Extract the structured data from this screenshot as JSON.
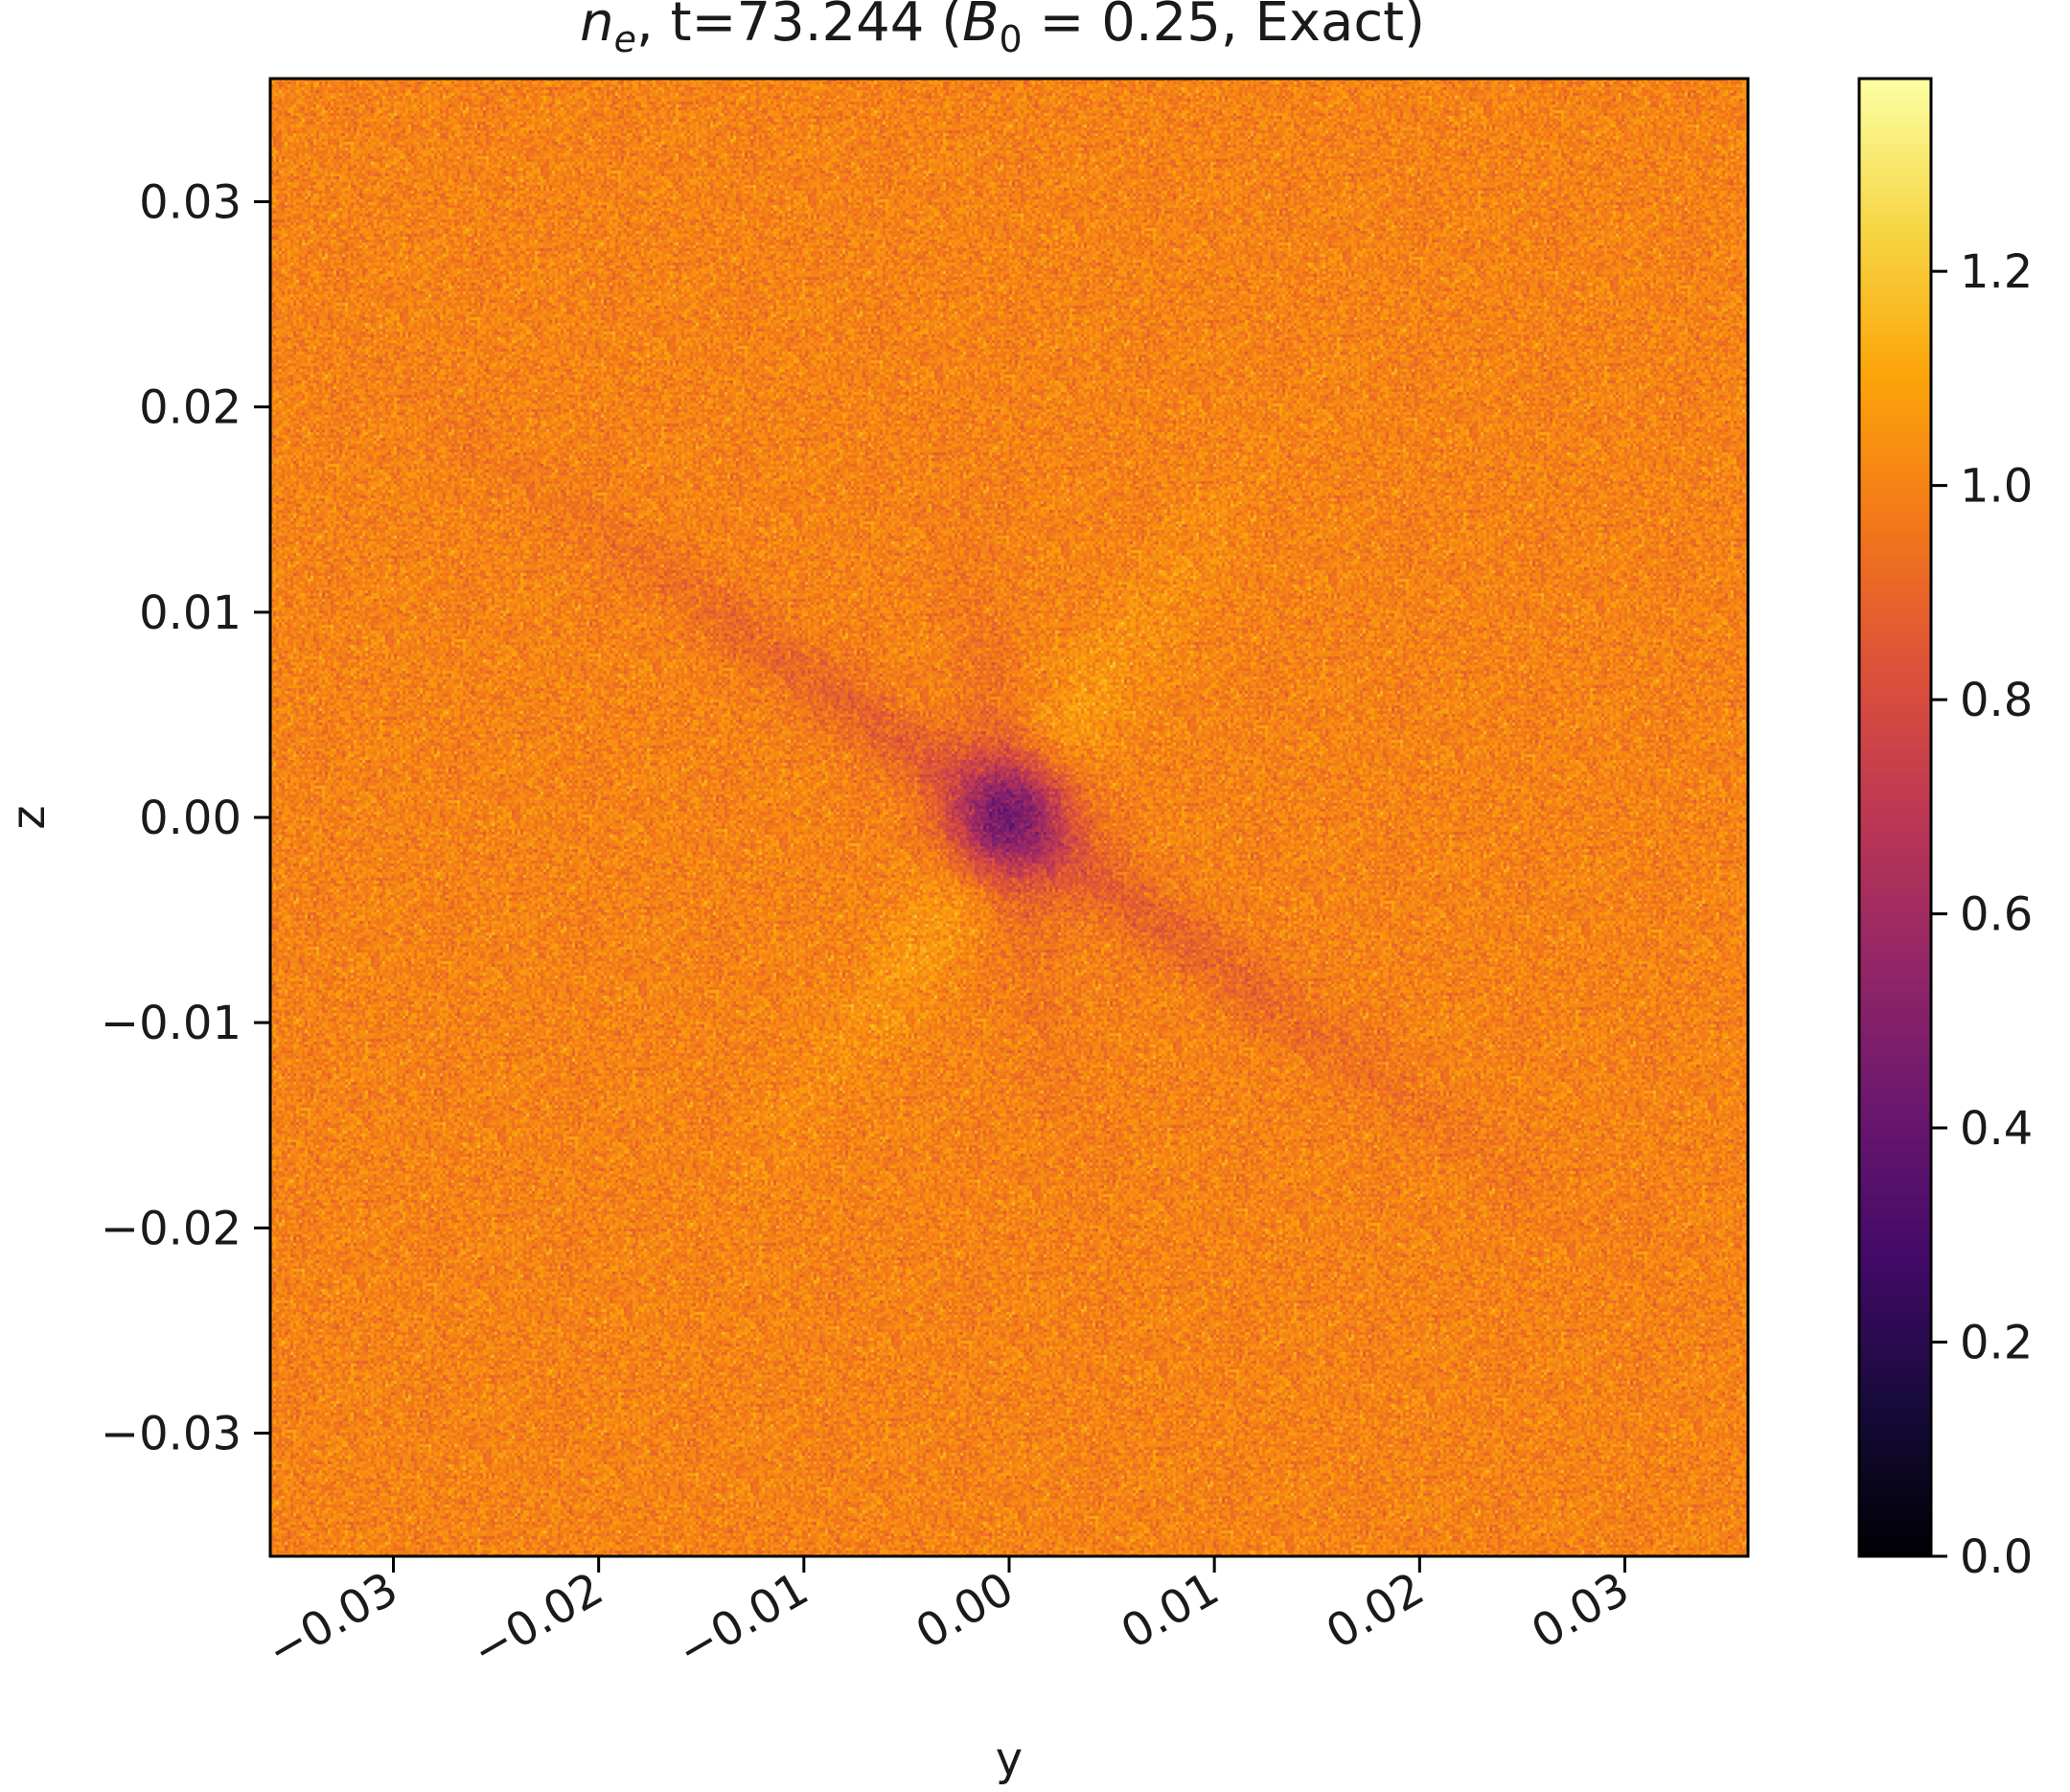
{
  "chart_data": {
    "type": "heatmap",
    "title": {
      "var": "n",
      "sub": "e",
      "time": "t=73.244",
      "param_open": "(",
      "param_var": "B",
      "param_sub": "0",
      "param_value": " = 0.25, Exact)"
    },
    "xlabel": "y",
    "ylabel": "z",
    "xlim": [
      -0.036,
      0.036
    ],
    "ylim": [
      -0.036,
      0.036
    ],
    "x_ticks": [
      {
        "value": -0.03,
        "label": "−0.03"
      },
      {
        "value": -0.02,
        "label": "−0.02"
      },
      {
        "value": -0.01,
        "label": "−0.01"
      },
      {
        "value": 0.0,
        "label": "0.00"
      },
      {
        "value": 0.01,
        "label": "0.01"
      },
      {
        "value": 0.02,
        "label": "0.02"
      },
      {
        "value": 0.03,
        "label": "0.03"
      }
    ],
    "y_ticks": [
      {
        "value": 0.03,
        "label": "0.03"
      },
      {
        "value": 0.02,
        "label": "0.02"
      },
      {
        "value": 0.01,
        "label": "0.01"
      },
      {
        "value": 0.0,
        "label": "0.00"
      },
      {
        "value": -0.01,
        "label": "−0.01"
      },
      {
        "value": -0.02,
        "label": "−0.02"
      },
      {
        "value": -0.03,
        "label": "−0.03"
      }
    ],
    "colormap": "inferno",
    "colorbar": {
      "range": [
        0.0,
        1.38
      ],
      "ticks": [
        {
          "value": 0.0,
          "label": "0.0"
        },
        {
          "value": 0.2,
          "label": "0.2"
        },
        {
          "value": 0.4,
          "label": "0.4"
        },
        {
          "value": 0.6,
          "label": "0.6"
        },
        {
          "value": 0.8,
          "label": "0.8"
        },
        {
          "value": 1.0,
          "label": "1.0"
        },
        {
          "value": 1.2,
          "label": "1.2"
        }
      ]
    },
    "field": {
      "background_value": 1.0,
      "noise_amplitude": 0.06,
      "core_min": {
        "y": 0.0,
        "z": 0.0,
        "value": 0.45,
        "radius": 0.002
      },
      "streaks": [
        {
          "angle_deg": -35,
          "value": 0.88,
          "length": 0.016,
          "width": 0.0012
        },
        {
          "angle_deg": 55,
          "value": 1.08,
          "length": 0.011,
          "width": 0.0015
        },
        {
          "angle_deg": 100,
          "value": 0.94,
          "length": 0.009,
          "width": 0.0012
        }
      ]
    }
  }
}
